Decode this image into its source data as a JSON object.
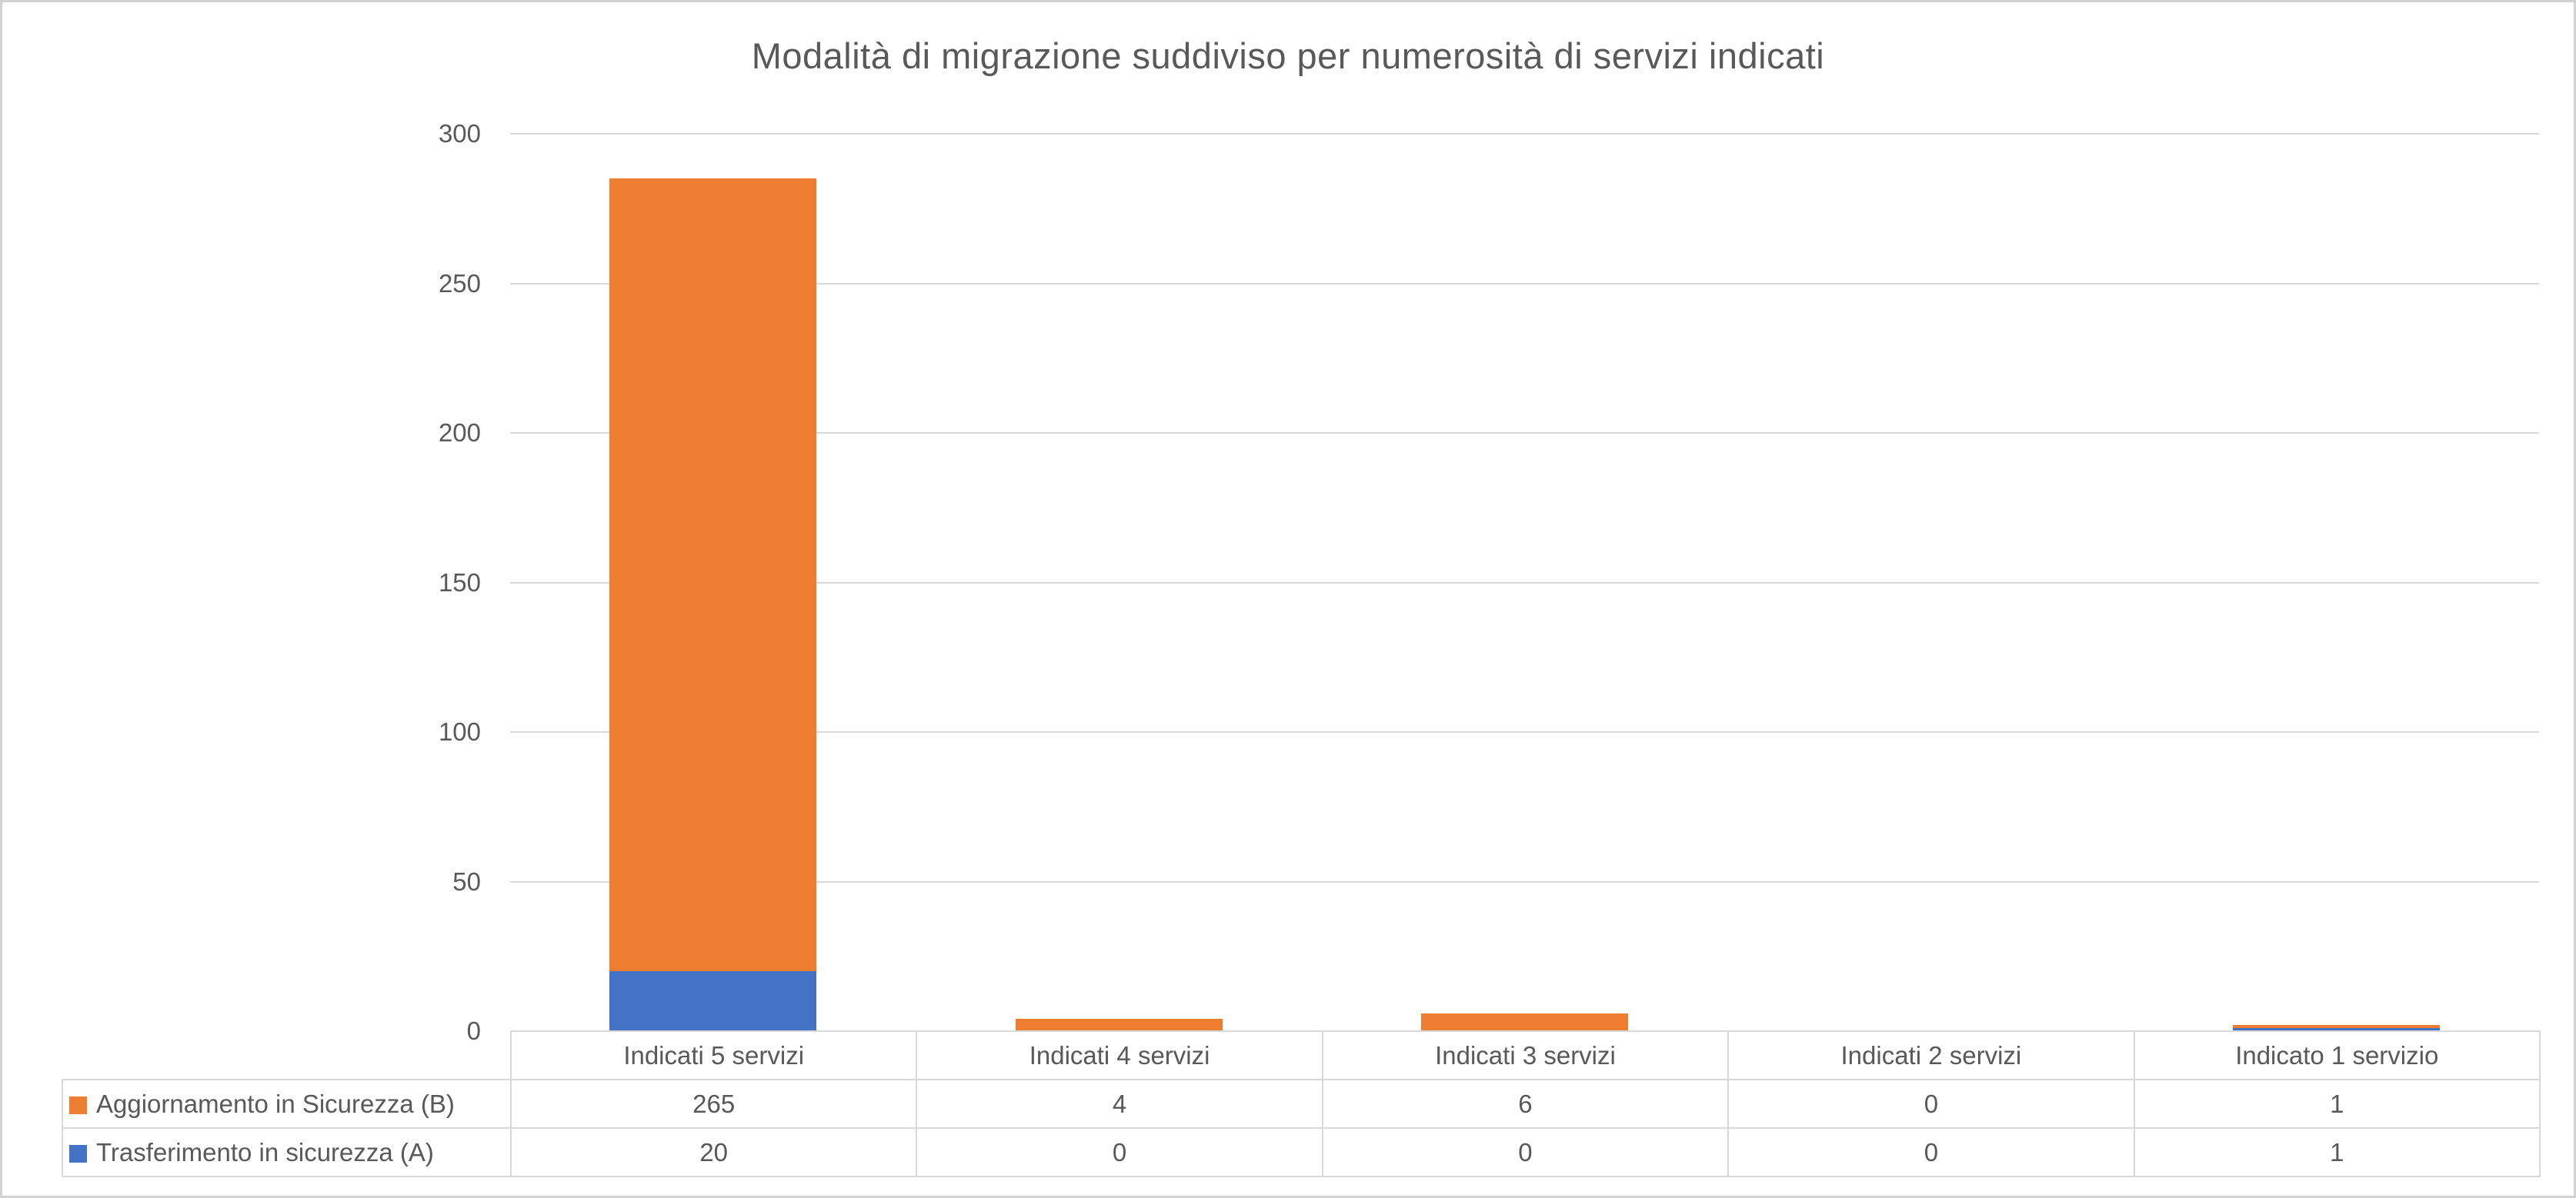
{
  "chart_data": {
    "type": "bar",
    "stacked": true,
    "title": "Modalità di migrazione suddiviso per numerosità di servizi indicati",
    "categories": [
      "Indicati 5 servizi",
      "Indicati 4 servizi",
      "Indicati 3 servizi",
      "Indicati 2 servizi",
      "Indicato 1 servizio"
    ],
    "series": [
      {
        "name": "Aggiornamento in Sicurezza (B)",
        "color": "#ED7D31",
        "values": [
          265,
          4,
          6,
          0,
          1
        ],
        "stack_position": "top"
      },
      {
        "name": "Trasferimento in sicurezza (A)",
        "color": "#4472C4",
        "values": [
          20,
          0,
          0,
          0,
          1
        ],
        "stack_position": "bottom"
      }
    ],
    "totals_per_category": [
      285,
      4,
      6,
      0,
      2
    ],
    "y_axis": {
      "min": 0,
      "max": 300,
      "step": 50,
      "ticks": [
        300,
        250,
        200,
        150,
        100,
        50,
        0
      ]
    },
    "xlabel": "",
    "ylabel": "",
    "grid": "horizontal",
    "legend_position": "data-table-left",
    "colors": {
      "text": "#595959",
      "gridline": "#D9D9D9",
      "table_border": "#D9D9D9",
      "frame_border": "#D2D2D2",
      "background": "#FFFFFF"
    }
  }
}
